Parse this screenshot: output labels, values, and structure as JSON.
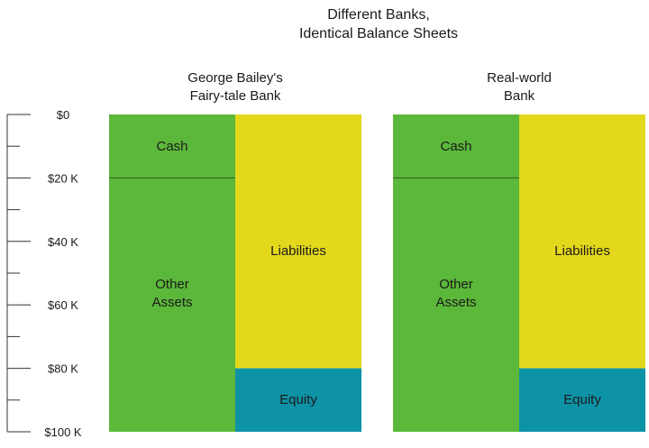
{
  "chart_data": {
    "type": "bar",
    "title": [
      "Different Banks,",
      "Identical Balance Sheets"
    ],
    "xlabel": "",
    "ylabel": "",
    "ylim": [
      0,
      100
    ],
    "y_unit": "thousands of dollars",
    "y_axis_inverted": true,
    "tick_labels": [
      "$0",
      "$20 K",
      "$40 K",
      "$60 K",
      "$80 K",
      "$100 K"
    ],
    "tick_values": [
      0,
      20,
      40,
      60,
      80,
      100
    ],
    "minor_tick_step": 10,
    "grid": false,
    "legend": "none",
    "banks": [
      {
        "name": [
          "George Bailey's",
          "Fairy-tale Bank"
        ],
        "assets": [
          {
            "label": [
              "Cash"
            ],
            "value": 20,
            "color": "#5cb83a"
          },
          {
            "label": [
              "Other",
              "Assets"
            ],
            "value": 80,
            "color": "#5cb83a"
          }
        ],
        "claims": [
          {
            "label": [
              "Liabilities"
            ],
            "value": 80,
            "color": "#e4d81c"
          },
          {
            "label": [
              "Equity"
            ],
            "value": 20,
            "color": "#0e93a6"
          }
        ]
      },
      {
        "name": [
          "Real-world",
          "Bank"
        ],
        "assets": [
          {
            "label": [
              "Cash"
            ],
            "value": 20,
            "color": "#5cb83a"
          },
          {
            "label": [
              "Other",
              "Assets"
            ],
            "value": 80,
            "color": "#5cb83a"
          }
        ],
        "claims": [
          {
            "label": [
              "Liabilities"
            ],
            "value": 80,
            "color": "#e4d81c"
          },
          {
            "label": [
              "Equity"
            ],
            "value": 20,
            "color": "#0e93a6"
          }
        ]
      }
    ]
  }
}
